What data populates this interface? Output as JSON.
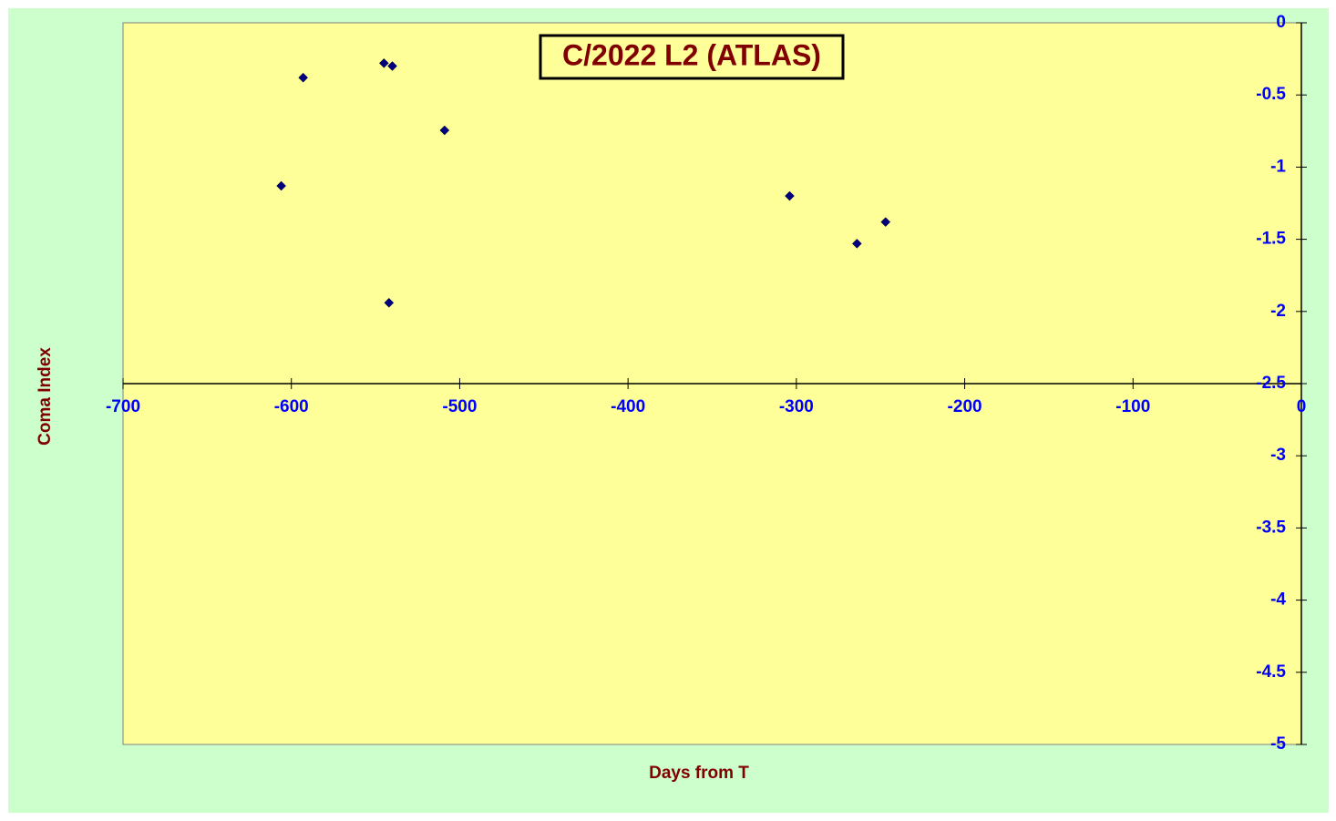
{
  "chart_data": {
    "type": "scatter",
    "title": "C/2022 L2 (ATLAS)",
    "x_label": "Days from T",
    "y_label": "Coma Index",
    "x": [
      -606,
      -593,
      -545,
      -540,
      -542,
      -509,
      -304,
      -264,
      -247
    ],
    "values": [
      -1.13,
      -0.38,
      -0.28,
      -0.3,
      -1.94,
      -0.745,
      -1.2,
      -1.53,
      -1.38
    ],
    "color": "#000080",
    "xlim": [
      -700,
      0
    ],
    "xticks": [
      -700,
      -600,
      -500,
      -400,
      -300,
      -200,
      -100,
      0
    ],
    "ylim": [
      -5,
      0
    ],
    "yticks": [
      0,
      -0.5,
      -1,
      -1.5,
      -2,
      -2.5,
      -3,
      -3.5,
      -4,
      -4.5,
      -5
    ],
    "x_axis_crosses": -2.5
  }
}
